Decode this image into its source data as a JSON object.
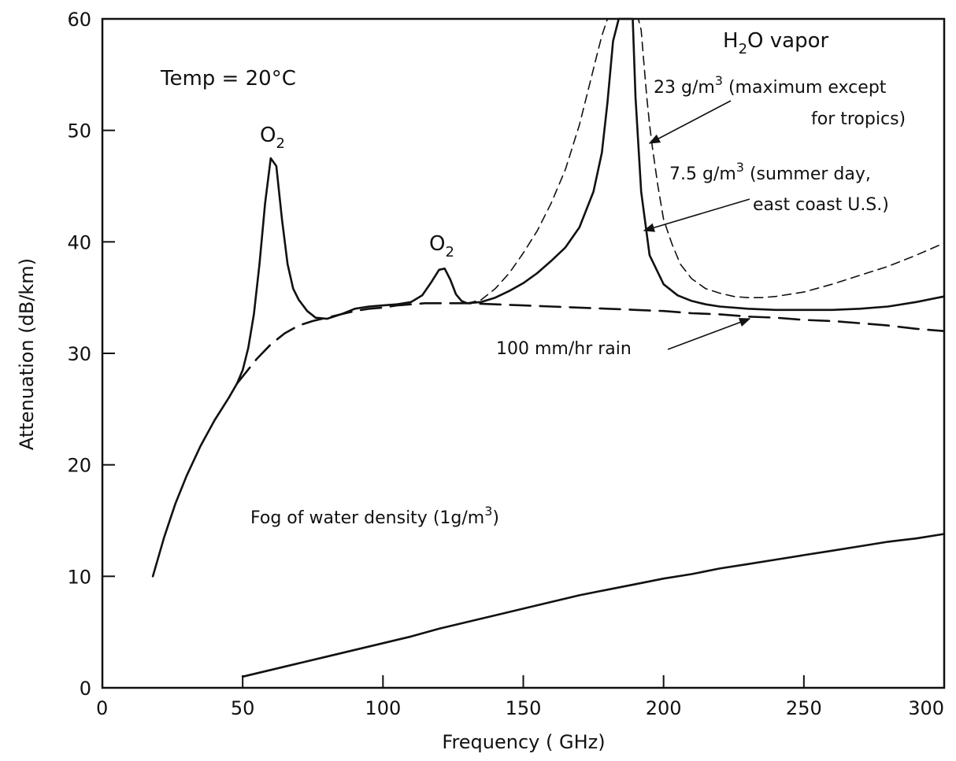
{
  "chart_data": {
    "type": "line",
    "xlabel": "Frequency ( GHz)",
    "ylabel": "Attenuation (dB/km)",
    "xlim": [
      0,
      300
    ],
    "ylim": [
      0,
      60
    ],
    "xticks": [
      0,
      50,
      100,
      150,
      200,
      250,
      300
    ],
    "yticks": [
      0,
      10,
      20,
      30,
      40,
      50,
      60
    ],
    "grid": false,
    "annotations": {
      "temp": "Temp = 20°C",
      "o2_peak_60": "O",
      "o2_peak_60_sub": "2",
      "o2_peak_120": "O",
      "o2_peak_120_sub": "2",
      "h2o_title_pre": "H",
      "h2o_title_sub": "2",
      "h2o_title_post": "O vapor",
      "vapor_23_line1_pre": "23 g/m",
      "vapor_23_line1_sup": "3",
      "vapor_23_line1_post": " (maximum except",
      "vapor_23_line2": "for tropics)",
      "vapor_75_line1_pre": "7.5 g/m",
      "vapor_75_line1_sup": "3",
      "vapor_75_line1_post": " (summer day,",
      "vapor_75_line2": "east coast U.S.)",
      "rain": "100 mm/hr rain",
      "fog_pre": "Fog of water density (1g/m",
      "fog_sup": "3",
      "fog_post": ")"
    },
    "series": [
      {
        "style": "solid",
        "x": [
          18,
          22,
          26,
          30,
          35,
          40,
          45,
          48,
          50,
          52,
          54,
          56,
          58,
          60,
          62,
          64,
          66,
          68,
          70,
          73,
          76,
          80,
          85,
          90,
          95,
          100,
          105,
          110,
          114,
          117,
          120,
          122,
          124,
          126,
          128,
          130,
          135,
          140,
          145,
          150,
          155,
          160,
          165,
          170,
          175,
          178,
          180,
          182,
          184,
          185,
          186,
          187,
          188,
          189,
          190,
          192,
          195,
          200,
          205,
          210,
          215,
          220,
          230,
          240,
          250,
          260,
          270,
          280,
          290,
          300
        ],
        "y": [
          10,
          13.5,
          16.5,
          19,
          21.7,
          24,
          26,
          27.3,
          28.5,
          30.5,
          33.5,
          38,
          43.5,
          47.5,
          46.8,
          42,
          38,
          35.8,
          34.8,
          33.8,
          33.2,
          33.1,
          33.5,
          34,
          34.2,
          34.3,
          34.4,
          34.6,
          35.2,
          36.3,
          37.5,
          37.6,
          36.6,
          35.3,
          34.7,
          34.5,
          34.6,
          35,
          35.6,
          36.3,
          37.2,
          38.3,
          39.5,
          41.3,
          44.5,
          48,
          52.5,
          58,
          60,
          60,
          60,
          60,
          60,
          60,
          53,
          44.5,
          38.8,
          36.2,
          35.2,
          34.7,
          34.4,
          34.2,
          34,
          33.9,
          33.9,
          33.9,
          34,
          34.2,
          34.6,
          35.1
        ]
      },
      {
        "style": "dashed",
        "x": [
          48,
          55,
          60,
          65,
          70,
          75,
          80,
          85,
          90,
          95,
          100,
          105,
          110,
          115,
          120,
          125,
          130,
          140,
          150,
          160,
          170,
          180,
          190,
          200,
          210,
          220,
          230,
          240,
          250,
          260,
          270,
          280,
          290,
          300
        ],
        "y": [
          27.3,
          29.5,
          30.8,
          31.8,
          32.5,
          32.9,
          33.2,
          33.5,
          33.8,
          34,
          34.1,
          34.3,
          34.4,
          34.5,
          34.5,
          34.5,
          34.5,
          34.4,
          34.3,
          34.2,
          34.1,
          34,
          33.9,
          33.8,
          33.6,
          33.5,
          33.3,
          33.2,
          33,
          32.9,
          32.7,
          32.5,
          32.2,
          32
        ]
      },
      {
        "style": "dashed-fine",
        "x": [
          130,
          135,
          140,
          145,
          150,
          155,
          160,
          165,
          170,
          173,
          176,
          178,
          180,
          181,
          182,
          183,
          184,
          190,
          191,
          192,
          193,
          194,
          195,
          196,
          198,
          200,
          203,
          206,
          210,
          215,
          220,
          225,
          230,
          235,
          240,
          250,
          260,
          270,
          280,
          290,
          300
        ],
        "y": [
          34.5,
          34.8,
          35.8,
          37.2,
          39,
          41,
          43.5,
          46.5,
          50.5,
          53.5,
          56.5,
          58.5,
          60,
          60,
          60,
          60,
          60,
          60,
          60,
          59,
          56,
          53,
          50.5,
          48.5,
          45,
          42,
          39.8,
          38,
          36.7,
          35.8,
          35.4,
          35.1,
          35,
          35,
          35.1,
          35.5,
          36.2,
          37,
          37.8,
          38.8,
          39.9
        ]
      },
      {
        "style": "solid",
        "x": [
          50,
          60,
          70,
          80,
          90,
          100,
          110,
          120,
          130,
          140,
          150,
          160,
          170,
          180,
          190,
          200,
          210,
          220,
          230,
          240,
          250,
          260,
          270,
          280,
          290,
          300
        ],
        "y": [
          1,
          1.6,
          2.2,
          2.8,
          3.4,
          4,
          4.6,
          5.3,
          5.9,
          6.5,
          7.1,
          7.7,
          8.3,
          8.8,
          9.3,
          9.8,
          10.2,
          10.7,
          11.1,
          11.5,
          11.9,
          12.3,
          12.7,
          13.1,
          13.4,
          13.8
        ]
      }
    ]
  }
}
